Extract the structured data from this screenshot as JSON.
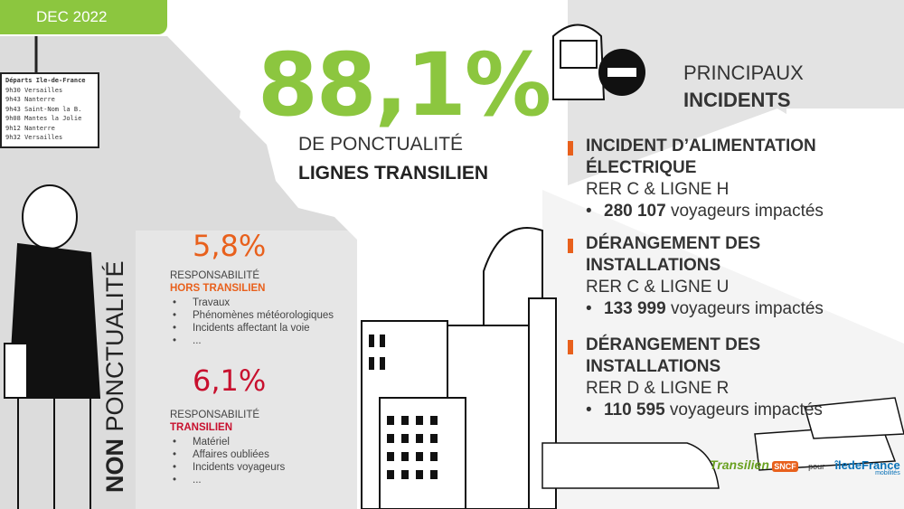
{
  "date": "DEC 2022",
  "board": {
    "header": "Départs  Ile-de-France",
    "rows": [
      "9h30  Versailles",
      "9h43  Nanterre",
      "9h43  Saint-Nom la B.",
      "9h08  Mantes la Jolie",
      "9h12  Nanterre",
      "9h32  Versailles"
    ]
  },
  "main": {
    "value": "88,1%",
    "line1": "DE PONCTUALITÉ",
    "line2": "LIGNES TRANSILIEN"
  },
  "non_ponctualite": {
    "prefix": "NON",
    "word": "PONCTUALITÉ"
  },
  "hors": {
    "value": "5,8%",
    "label": "RESPONSABILITÉ",
    "highlight": "HORS TRANSILIEN",
    "items": [
      "Travaux",
      "Phénomènes météorologiques",
      "Incidents affectant la voie",
      "..."
    ]
  },
  "transilien": {
    "value": "6,1%",
    "label": "RESPONSABILITÉ",
    "highlight": "TRANSILIEN",
    "items": [
      "Matériel",
      "Affaires oubliées",
      "Incidents voyageurs",
      "..."
    ]
  },
  "incidents_title": {
    "line1": "PRINCIPAUX",
    "line2": "INCIDENTS"
  },
  "incidents": [
    {
      "title1": "INCIDENT D’ALIMENTATION",
      "title2": "ÉLECTRIQUE",
      "lines": "RER C & LIGNE H",
      "count": "280 107",
      "suffix": "voyageurs impactés"
    },
    {
      "title1": "DÉRANGEMENT DES",
      "title2": "INSTALLATIONS",
      "lines": "RER C & LIGNE U",
      "count": "133 999",
      "suffix": "voyageurs impactés"
    },
    {
      "title1": "DÉRANGEMENT DES",
      "title2": "INSTALLATIONS",
      "lines": "RER D & LIGNE R",
      "count": "110 595",
      "suffix": "voyageurs impactés"
    }
  ],
  "logos": {
    "transilien": "Transilien",
    "sncf": "SNCF",
    "pour": "pour",
    "idf": "îledeFrance",
    "idf_sub": "mobilités"
  },
  "colors": {
    "green": "#8cc63f",
    "orange": "#e8601c",
    "red": "#c8102e",
    "grey": "#dcdcdc"
  }
}
